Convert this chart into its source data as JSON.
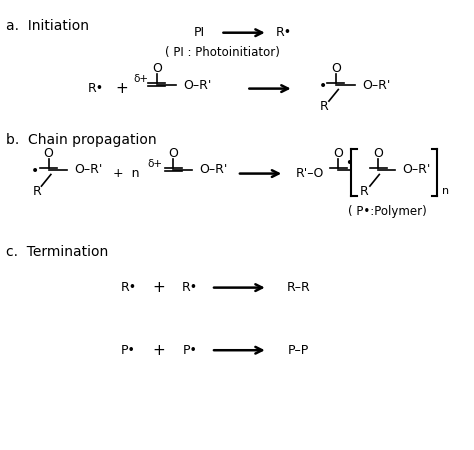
{
  "bg_color": "#ffffff",
  "sections": {
    "a_label": "a.  Initiation",
    "b_label": "b.  Chain propagation",
    "c_label": "c.  Termination"
  },
  "arrows": {
    "color": "black",
    "lw": 2.0,
    "mutation_scale": 14
  }
}
